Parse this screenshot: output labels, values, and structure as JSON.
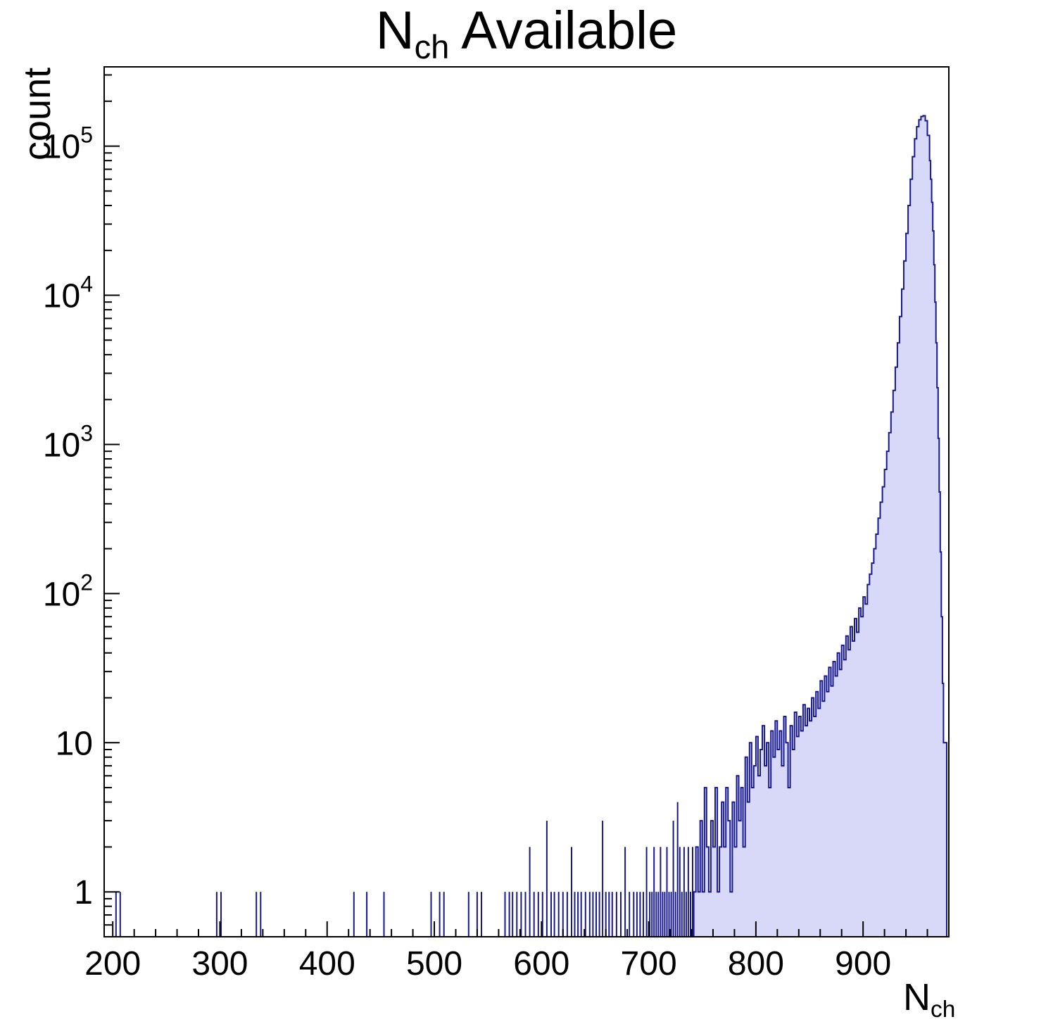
{
  "title": {
    "main": "N",
    "sub": "ch",
    "rest": " Available"
  },
  "ylabel": "count",
  "xlabel": {
    "main": "N",
    "sub": "ch"
  },
  "colors": {
    "fill": "#d8d8f8",
    "line": "#17178f",
    "axis": "#000000"
  },
  "chart_data": {
    "type": "bar",
    "title": "N_ch Available",
    "xlabel": "N_ch",
    "ylabel": "count",
    "yscale": "log",
    "xlim": [
      192,
      980
    ],
    "ylim": [
      0.5,
      340000
    ],
    "x_major_ticks": [
      200,
      300,
      400,
      500,
      600,
      700,
      800,
      900
    ],
    "x_minor_step": 20,
    "legend": "none",
    "grid": false,
    "spikes": [
      [
        203,
        1
      ],
      [
        207,
        1
      ],
      [
        297,
        1
      ],
      [
        301,
        1
      ],
      [
        334,
        1
      ],
      [
        338,
        1
      ],
      [
        425,
        1
      ],
      [
        437,
        1
      ],
      [
        453,
        1
      ],
      [
        497,
        1
      ],
      [
        505,
        1
      ],
      [
        509,
        1
      ],
      [
        532,
        1
      ],
      [
        540,
        1
      ],
      [
        544,
        1
      ],
      [
        566,
        1
      ],
      [
        570,
        1
      ],
      [
        573,
        1
      ],
      [
        577,
        1
      ],
      [
        581,
        1
      ],
      [
        585,
        1
      ],
      [
        589,
        2
      ],
      [
        593,
        1
      ],
      [
        597,
        1
      ],
      [
        601,
        1
      ],
      [
        605,
        3
      ],
      [
        609,
        1
      ],
      [
        612,
        1
      ],
      [
        616,
        1
      ],
      [
        620,
        1
      ],
      [
        624,
        1
      ],
      [
        628,
        2
      ],
      [
        631,
        1
      ],
      [
        634,
        1
      ],
      [
        637,
        1
      ],
      [
        641,
        1
      ],
      [
        645,
        1
      ],
      [
        648,
        1
      ],
      [
        651,
        1
      ],
      [
        654,
        1
      ],
      [
        657,
        3
      ],
      [
        660,
        1
      ],
      [
        663,
        1
      ],
      [
        666,
        1
      ],
      [
        670,
        1
      ],
      [
        674,
        1
      ],
      [
        678,
        2
      ],
      [
        682,
        1
      ],
      [
        686,
        1
      ],
      [
        689,
        1
      ],
      [
        692,
        1
      ],
      [
        695,
        1
      ],
      [
        698,
        2
      ],
      [
        701,
        1
      ],
      [
        703,
        1
      ],
      [
        705,
        2
      ],
      [
        707,
        1
      ],
      [
        709,
        1
      ],
      [
        711,
        2
      ],
      [
        713,
        1
      ],
      [
        715,
        1
      ],
      [
        717,
        2
      ],
      [
        719,
        1
      ],
      [
        721,
        1
      ],
      [
        723,
        3
      ],
      [
        725,
        1
      ],
      [
        727,
        4
      ],
      [
        729,
        2
      ],
      [
        731,
        1
      ],
      [
        733,
        2
      ],
      [
        735,
        1
      ],
      [
        737,
        2
      ],
      [
        739,
        1
      ],
      [
        741,
        2
      ]
    ],
    "envelope": [
      [
        742,
        1
      ],
      [
        744,
        2
      ],
      [
        746,
        1
      ],
      [
        748,
        3
      ],
      [
        750,
        1
      ],
      [
        752,
        5
      ],
      [
        754,
        2
      ],
      [
        756,
        1
      ],
      [
        758,
        3
      ],
      [
        760,
        2
      ],
      [
        762,
        5
      ],
      [
        764,
        1
      ],
      [
        766,
        2
      ],
      [
        768,
        4
      ],
      [
        770,
        2
      ],
      [
        772,
        5
      ],
      [
        774,
        3
      ],
      [
        776,
        1
      ],
      [
        778,
        4
      ],
      [
        780,
        2
      ],
      [
        782,
        6
      ],
      [
        784,
        3
      ],
      [
        786,
        5
      ],
      [
        788,
        2
      ],
      [
        790,
        8
      ],
      [
        792,
        4
      ],
      [
        794,
        10
      ],
      [
        796,
        5
      ],
      [
        798,
        7
      ],
      [
        800,
        11
      ],
      [
        802,
        6
      ],
      [
        804,
        9
      ],
      [
        806,
        13
      ],
      [
        808,
        7
      ],
      [
        810,
        10
      ],
      [
        812,
        5
      ],
      [
        814,
        12
      ],
      [
        816,
        8
      ],
      [
        818,
        14
      ],
      [
        820,
        9
      ],
      [
        822,
        12
      ],
      [
        824,
        7
      ],
      [
        826,
        15
      ],
      [
        828,
        10
      ],
      [
        830,
        5
      ],
      [
        832,
        13
      ],
      [
        834,
        9
      ],
      [
        836,
        16
      ],
      [
        838,
        11
      ],
      [
        840,
        15
      ],
      [
        842,
        12
      ],
      [
        844,
        18
      ],
      [
        846,
        13
      ],
      [
        848,
        17
      ],
      [
        850,
        14
      ],
      [
        852,
        20
      ],
      [
        854,
        15
      ],
      [
        856,
        22
      ],
      [
        858,
        17
      ],
      [
        860,
        26
      ],
      [
        862,
        19
      ],
      [
        864,
        28
      ],
      [
        866,
        22
      ],
      [
        868,
        32
      ],
      [
        870,
        24
      ],
      [
        872,
        35
      ],
      [
        874,
        28
      ],
      [
        876,
        40
      ],
      [
        878,
        31
      ],
      [
        880,
        45
      ],
      [
        882,
        36
      ],
      [
        884,
        52
      ],
      [
        886,
        42
      ],
      [
        888,
        60
      ],
      [
        890,
        48
      ],
      [
        892,
        68
      ],
      [
        894,
        55
      ],
      [
        896,
        80
      ],
      [
        898,
        70
      ],
      [
        900,
        95
      ],
      [
        902,
        85
      ],
      [
        904,
        115
      ],
      [
        906,
        135
      ],
      [
        908,
        160
      ],
      [
        910,
        200
      ],
      [
        912,
        250
      ],
      [
        914,
        320
      ],
      [
        916,
        410
      ],
      [
        918,
        520
      ],
      [
        920,
        680
      ],
      [
        922,
        900
      ],
      [
        924,
        1200
      ],
      [
        926,
        1650
      ],
      [
        928,
        2300
      ],
      [
        930,
        3300
      ],
      [
        932,
        4800
      ],
      [
        934,
        7200
      ],
      [
        936,
        11000
      ],
      [
        938,
        17000
      ],
      [
        940,
        26000
      ],
      [
        942,
        40000
      ],
      [
        944,
        60000
      ],
      [
        946,
        85000
      ],
      [
        948,
        112000
      ],
      [
        950,
        135000
      ],
      [
        952,
        150000
      ],
      [
        954,
        158000
      ],
      [
        956,
        160000
      ],
      [
        958,
        148000
      ],
      [
        960,
        118000
      ],
      [
        962,
        80000
      ],
      [
        963,
        60000
      ],
      [
        964,
        42000
      ],
      [
        965,
        27000
      ],
      [
        966,
        16000
      ],
      [
        967,
        9000
      ],
      [
        968,
        4800
      ],
      [
        969,
        2400
      ],
      [
        970,
        1100
      ],
      [
        971,
        480
      ],
      [
        972,
        190
      ],
      [
        973,
        70
      ],
      [
        974,
        25
      ],
      [
        975,
        10
      ],
      [
        976,
        10
      ]
    ],
    "envelope_end": 978
  }
}
